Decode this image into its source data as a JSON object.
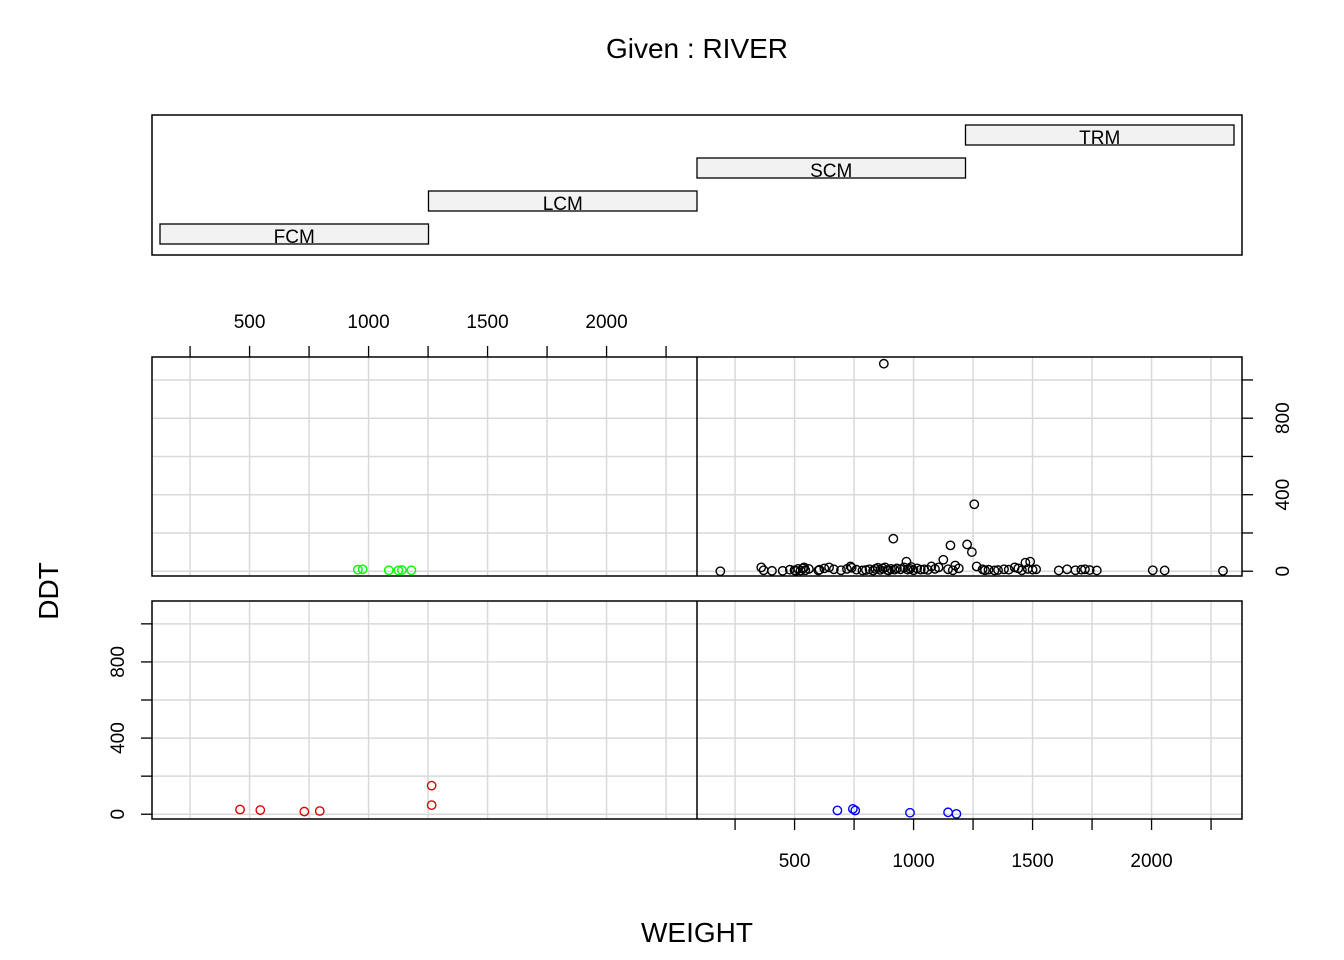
{
  "chart_data": {
    "type": "scatter",
    "title": "Given : RIVER",
    "xlabel": "WEIGHT",
    "ylabel": "DDT",
    "given_levels": [
      "FCM",
      "LCM",
      "SCM",
      "TRM"
    ],
    "x_ticks": [
      500,
      1000,
      1500,
      2000
    ],
    "y_ticks": [
      0,
      400,
      800
    ],
    "xlim": [
      90,
      2380
    ],
    "ylim": [
      -25,
      1120
    ],
    "grid": true,
    "panels": [
      {
        "level": "FCM",
        "color": "#df0000",
        "points": [
          [
            460,
            25
          ],
          [
            545,
            22
          ],
          [
            730,
            14
          ],
          [
            795,
            17
          ],
          [
            1265,
            48
          ],
          [
            1265,
            150
          ]
        ]
      },
      {
        "level": "LCM",
        "color": "#00ff00",
        "points": [
          [
            955,
            8
          ],
          [
            975,
            10
          ],
          [
            1085,
            5
          ],
          [
            1125,
            4
          ],
          [
            1140,
            6
          ],
          [
            1180,
            5
          ]
        ]
      },
      {
        "level": "SCM",
        "color": "#0000ff",
        "points": [
          [
            680,
            20
          ],
          [
            745,
            28
          ],
          [
            755,
            20
          ],
          [
            985,
            8
          ],
          [
            1145,
            10
          ],
          [
            1180,
            2
          ]
        ]
      },
      {
        "level": "TRM",
        "color": "#000000",
        "points": [
          [
            188,
            0
          ],
          [
            360,
            20
          ],
          [
            370,
            5
          ],
          [
            405,
            2
          ],
          [
            450,
            2
          ],
          [
            480,
            8
          ],
          [
            500,
            5
          ],
          [
            505,
            1
          ],
          [
            515,
            12
          ],
          [
            525,
            3
          ],
          [
            535,
            15
          ],
          [
            540,
            20
          ],
          [
            545,
            5
          ],
          [
            560,
            12
          ],
          [
            600,
            4
          ],
          [
            605,
            8
          ],
          [
            625,
            15
          ],
          [
            645,
            20
          ],
          [
            665,
            10
          ],
          [
            695,
            5
          ],
          [
            720,
            12
          ],
          [
            735,
            25
          ],
          [
            740,
            18
          ],
          [
            760,
            8
          ],
          [
            785,
            4
          ],
          [
            800,
            6
          ],
          [
            815,
            10
          ],
          [
            830,
            3
          ],
          [
            840,
            12
          ],
          [
            850,
            18
          ],
          [
            860,
            7
          ],
          [
            870,
            15
          ],
          [
            875,
            1085
          ],
          [
            880,
            20
          ],
          [
            890,
            6
          ],
          [
            895,
            4
          ],
          [
            905,
            12
          ],
          [
            915,
            170
          ],
          [
            920,
            8
          ],
          [
            930,
            15
          ],
          [
            945,
            10
          ],
          [
            960,
            20
          ],
          [
            970,
            50
          ],
          [
            975,
            8
          ],
          [
            985,
            12
          ],
          [
            990,
            22
          ],
          [
            1000,
            5
          ],
          [
            1015,
            15
          ],
          [
            1030,
            8
          ],
          [
            1045,
            10
          ],
          [
            1060,
            7
          ],
          [
            1075,
            25
          ],
          [
            1090,
            12
          ],
          [
            1105,
            20
          ],
          [
            1125,
            60
          ],
          [
            1145,
            10
          ],
          [
            1155,
            135
          ],
          [
            1165,
            5
          ],
          [
            1175,
            30
          ],
          [
            1190,
            15
          ],
          [
            1225,
            140
          ],
          [
            1245,
            100
          ],
          [
            1255,
            350
          ],
          [
            1265,
            25
          ],
          [
            1290,
            10
          ],
          [
            1300,
            5
          ],
          [
            1315,
            8
          ],
          [
            1340,
            4
          ],
          [
            1355,
            6
          ],
          [
            1380,
            10
          ],
          [
            1400,
            8
          ],
          [
            1425,
            20
          ],
          [
            1440,
            15
          ],
          [
            1455,
            5
          ],
          [
            1470,
            45
          ],
          [
            1480,
            12
          ],
          [
            1490,
            50
          ],
          [
            1500,
            8
          ],
          [
            1515,
            10
          ],
          [
            1610,
            4
          ],
          [
            1645,
            10
          ],
          [
            1680,
            5
          ],
          [
            1705,
            8
          ],
          [
            1720,
            10
          ],
          [
            1740,
            6
          ],
          [
            1770,
            4
          ],
          [
            2005,
            5
          ],
          [
            2055,
            4
          ],
          [
            2300,
            2
          ]
        ]
      }
    ]
  }
}
